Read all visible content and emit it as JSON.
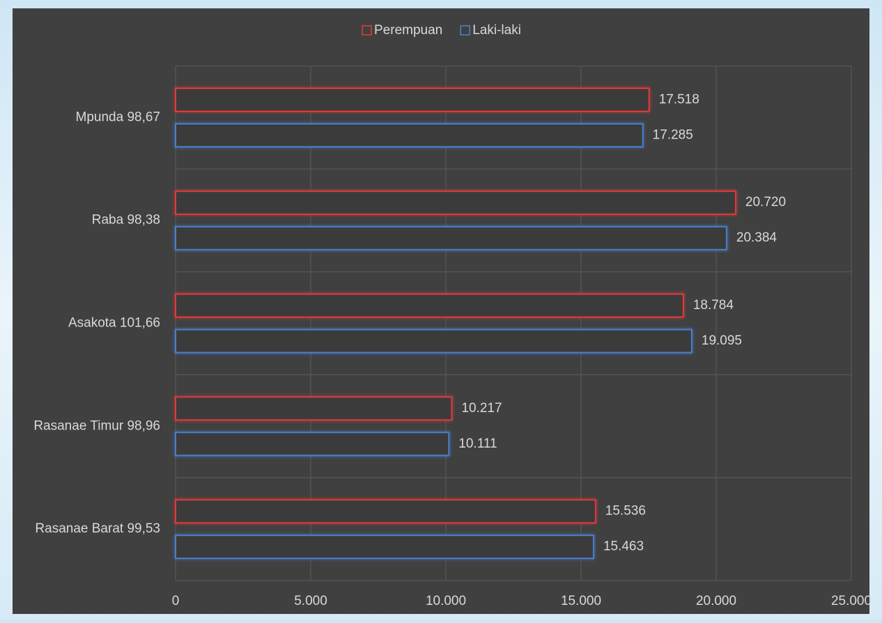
{
  "chart_data": {
    "type": "barh",
    "categories": [
      "Mpunda 98,67",
      "Raba 98,38",
      "Asakota 101,66",
      "Rasanae Timur 98,96",
      "Rasanae Barat 99,53"
    ],
    "series": [
      {
        "name": "Perempuan",
        "color": "#e03a3a",
        "values": [
          17518,
          20720,
          18784,
          10217,
          15536
        ],
        "value_labels": [
          "17.518",
          "20.720",
          "18.784",
          "10.217",
          "15.536"
        ]
      },
      {
        "name": "Laki-laki",
        "color": "#4a80cc",
        "values": [
          17285,
          20384,
          19095,
          10111,
          15463
        ],
        "value_labels": [
          "17.285",
          "20.384",
          "19.095",
          "10.111",
          "15.463"
        ]
      }
    ],
    "xlim": [
      0,
      25000
    ],
    "xticks": [
      0,
      {
        "value": 5000,
        "label": "5.000"
      },
      {
        "value": 10000,
        "label": "10.000"
      },
      {
        "value": 15000,
        "label": "15.000"
      },
      {
        "value": 20000,
        "label": "20.000"
      },
      {
        "value": 25000,
        "label": "25.000"
      }
    ],
    "grid": true,
    "legend": "top"
  }
}
